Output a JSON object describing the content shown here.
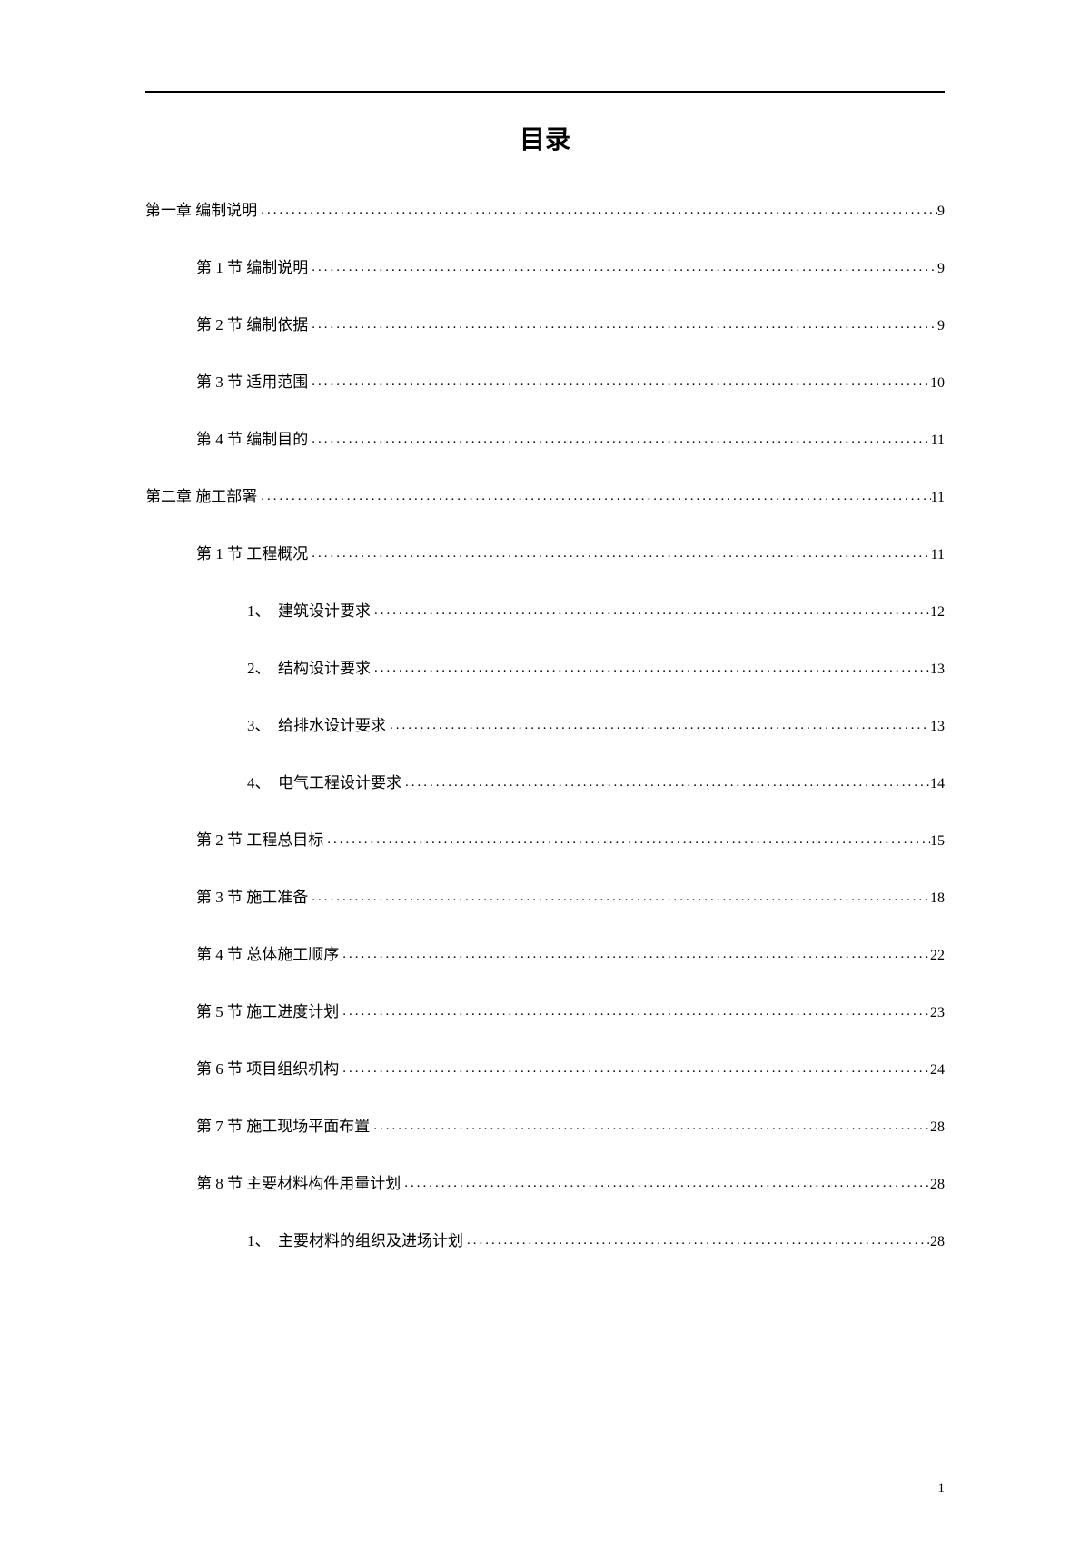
{
  "title": "目录",
  "pageNumber": "1",
  "entries": [
    {
      "level": 0,
      "label": "第一章 编制说明",
      "page": "9"
    },
    {
      "level": 1,
      "label": "第 1 节 编制说明",
      "page": "9"
    },
    {
      "level": 1,
      "label": "第 2 节 编制依据",
      "page": "9"
    },
    {
      "level": 1,
      "label": "第 3 节 适用范围",
      "page": "10"
    },
    {
      "level": 1,
      "label": "第 4 节 编制目的",
      "page": "11"
    },
    {
      "level": 0,
      "label": "第二章 施工部署",
      "page": "11"
    },
    {
      "level": 1,
      "label": "第 1 节 工程概况",
      "page": "11"
    },
    {
      "level": 2,
      "label": "1、　建筑设计要求",
      "page": "12"
    },
    {
      "level": 2,
      "label": "2、　结构设计要求",
      "page": "13"
    },
    {
      "level": 2,
      "label": "3、　给排水设计要求",
      "page": "13"
    },
    {
      "level": 2,
      "label": "4、　电气工程设计要求",
      "page": "14"
    },
    {
      "level": 1,
      "label": "第 2 节 工程总目标",
      "page": "15"
    },
    {
      "level": 1,
      "label": "第 3 节 施工准备",
      "page": "18"
    },
    {
      "level": 1,
      "label": "第 4 节 总体施工顺序",
      "page": "22"
    },
    {
      "level": 1,
      "label": "第 5 节 施工进度计划",
      "page": "23"
    },
    {
      "level": 1,
      "label": "第 6 节 项目组织机构",
      "page": "24"
    },
    {
      "level": 1,
      "label": "第 7 节 施工现场平面布置",
      "page": "28"
    },
    {
      "level": 1,
      "label": "第 8 节 主要材料构件用量计划",
      "page": "28"
    },
    {
      "level": 2,
      "label": "1、　主要材料的组织及进场计划",
      "page": "28"
    }
  ]
}
